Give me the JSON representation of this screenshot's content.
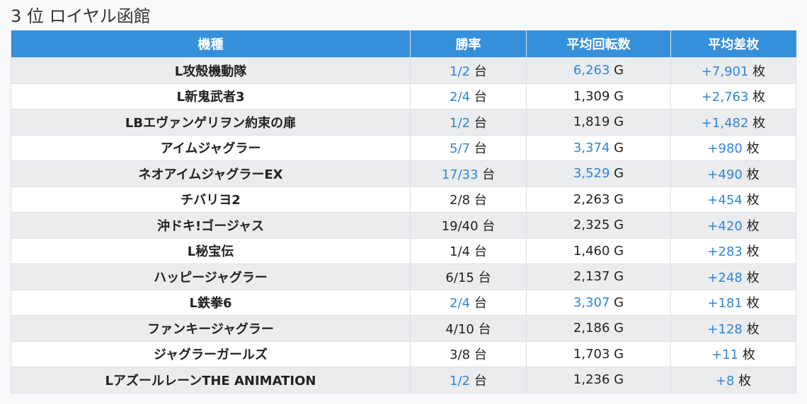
{
  "title": "3 位 ロイヤル函館",
  "headers": [
    "機種",
    "勝率",
    "平均回転数",
    "平均差枚"
  ],
  "units": {
    "rate": "台",
    "spins": "G",
    "diff": "枚"
  },
  "colors": {
    "header": "#3590dc",
    "highlight": "#2f86d6"
  },
  "rows": [
    {
      "name": "L攻殻機動隊",
      "rate": "1/2",
      "rate_hl": true,
      "spins": "6,263",
      "spins_hl": true,
      "diff": "+7,901"
    },
    {
      "name": "L新鬼武者3",
      "rate": "2/4",
      "rate_hl": true,
      "spins": "1,309",
      "spins_hl": false,
      "diff": "+2,763"
    },
    {
      "name": "LBエヴァンゲリヲン約束の扉",
      "rate": "1/2",
      "rate_hl": true,
      "spins": "1,819",
      "spins_hl": false,
      "diff": "+1,482"
    },
    {
      "name": "アイムジャグラー",
      "rate": "5/7",
      "rate_hl": true,
      "spins": "3,374",
      "spins_hl": true,
      "diff": "+980"
    },
    {
      "name": "ネオアイムジャグラーEX",
      "rate": "17/33",
      "rate_hl": true,
      "spins": "3,529",
      "spins_hl": true,
      "diff": "+490"
    },
    {
      "name": "チバリヨ2",
      "rate": "2/8",
      "rate_hl": false,
      "spins": "2,263",
      "spins_hl": false,
      "diff": "+454"
    },
    {
      "name": "沖ドキ!ゴージャス",
      "rate": "19/40",
      "rate_hl": false,
      "spins": "2,325",
      "spins_hl": false,
      "diff": "+420"
    },
    {
      "name": "L秘宝伝",
      "rate": "1/4",
      "rate_hl": false,
      "spins": "1,460",
      "spins_hl": false,
      "diff": "+283"
    },
    {
      "name": "ハッピージャグラー",
      "rate": "6/15",
      "rate_hl": false,
      "spins": "2,137",
      "spins_hl": false,
      "diff": "+248"
    },
    {
      "name": "L鉄拳6",
      "rate": "2/4",
      "rate_hl": true,
      "spins": "3,307",
      "spins_hl": true,
      "diff": "+181"
    },
    {
      "name": "ファンキージャグラー",
      "rate": "4/10",
      "rate_hl": false,
      "spins": "2,186",
      "spins_hl": false,
      "diff": "+128"
    },
    {
      "name": "ジャグラーガールズ",
      "rate": "3/8",
      "rate_hl": false,
      "spins": "1,703",
      "spins_hl": false,
      "diff": "+11"
    },
    {
      "name": "LアズールレーンTHE ANIMATION",
      "rate": "1/2",
      "rate_hl": true,
      "spins": "1,236",
      "spins_hl": false,
      "diff": "+8"
    }
  ]
}
